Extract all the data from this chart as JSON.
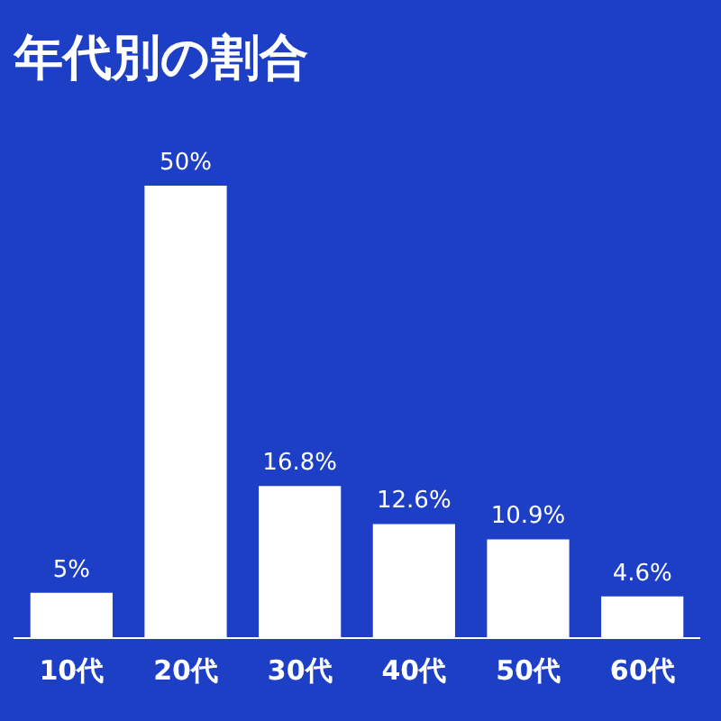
{
  "chart_data": {
    "type": "bar",
    "title": "年代別の割合",
    "categories": [
      "10代",
      "20代",
      "30代",
      "40代",
      "50代",
      "60代"
    ],
    "values": [
      5,
      50,
      16.8,
      12.6,
      10.9,
      4.6
    ],
    "value_labels": [
      "5%",
      "50%",
      "16.8%",
      "12.6%",
      "10.9%",
      "4.6%"
    ],
    "color": "#ffffff",
    "grid": false,
    "legend": false,
    "tick_labels": "x"
  }
}
